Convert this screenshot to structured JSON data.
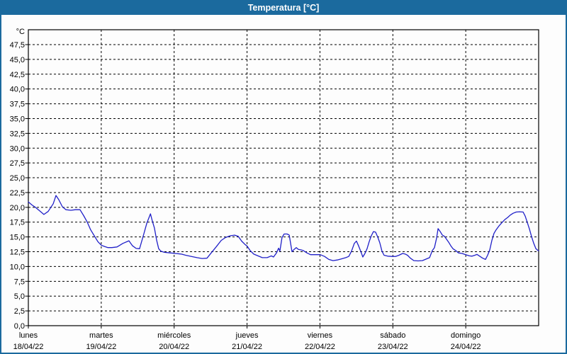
{
  "window": {
    "title": "Temperatura [°C]"
  },
  "colors": {
    "accent": "#1b6a9e",
    "title_text": "#ffffff",
    "line": "#2020c8",
    "grid": "#000000",
    "axis": "#000000",
    "plot_background": "#fdfdfd",
    "label_text": "#000000"
  },
  "chart_data": {
    "type": "line",
    "title": "Temperatura [°C]",
    "xlabel": "",
    "ylabel": "°C",
    "ylim": [
      0,
      50
    ],
    "ytick_step": 2.5,
    "ytick_labels": [
      "0,0",
      "2,5",
      "5,0",
      "7,5",
      "10,0",
      "12,5",
      "15,0",
      "17,5",
      "20,0",
      "22,5",
      "25,0",
      "27,5",
      "30,0",
      "32,5",
      "35,0",
      "37,5",
      "40,0",
      "42,5",
      "45,0",
      "47,5"
    ],
    "grid": "dashed",
    "legend_position": "none",
    "x_hours_total": 168,
    "x_days": [
      {
        "name": "lunes",
        "date": "18/04/22"
      },
      {
        "name": "martes",
        "date": "19/04/22"
      },
      {
        "name": "miércoles",
        "date": "20/04/22"
      },
      {
        "name": "jueves",
        "date": "21/04/22"
      },
      {
        "name": "viernes",
        "date": "22/04/22"
      },
      {
        "name": "sábado",
        "date": "23/04/22"
      },
      {
        "name": "domingo",
        "date": "24/04/22"
      }
    ],
    "series": [
      {
        "name": "Temperatura",
        "unit": "°C",
        "points": [
          [
            0,
            20.9
          ],
          [
            1.2,
            20.4
          ],
          [
            2.3,
            20.0
          ],
          [
            3.5,
            19.5
          ],
          [
            5.1,
            18.8
          ],
          [
            6.5,
            19.3
          ],
          [
            8.2,
            20.6
          ],
          [
            9.1,
            22.0
          ],
          [
            10,
            21.3
          ],
          [
            11.2,
            20.1
          ],
          [
            12.4,
            19.6
          ],
          [
            14,
            19.5
          ],
          [
            15.5,
            19.6
          ],
          [
            17,
            19.6
          ],
          [
            18.2,
            18.6
          ],
          [
            19.4,
            17.5
          ],
          [
            20.5,
            16.2
          ],
          [
            21.7,
            15.2
          ],
          [
            22.9,
            14.2
          ],
          [
            24,
            13.6
          ],
          [
            25,
            13.4
          ],
          [
            26.2,
            13.2
          ],
          [
            27.5,
            13.2
          ],
          [
            29.2,
            13.3
          ],
          [
            31.1,
            13.9
          ],
          [
            33.1,
            14.35
          ],
          [
            34.3,
            13.5
          ],
          [
            35.5,
            13.05
          ],
          [
            36.6,
            13.0
          ],
          [
            38,
            15.5
          ],
          [
            39,
            17.3
          ],
          [
            40.2,
            18.9
          ],
          [
            40.8,
            17.7
          ],
          [
            41.5,
            16.5
          ],
          [
            42.2,
            14.5
          ],
          [
            42.9,
            13.0
          ],
          [
            43.6,
            12.6
          ],
          [
            44.8,
            12.4
          ],
          [
            46.7,
            12.3
          ],
          [
            48.5,
            12.2
          ],
          [
            50.4,
            12.1
          ],
          [
            51.8,
            11.9
          ],
          [
            53.7,
            11.7
          ],
          [
            55.5,
            11.5
          ],
          [
            57.2,
            11.35
          ],
          [
            58.8,
            11.4
          ],
          [
            60.2,
            12.3
          ],
          [
            61.8,
            13.3
          ],
          [
            63.5,
            14.4
          ],
          [
            64.9,
            14.9
          ],
          [
            66.5,
            15.2
          ],
          [
            67.9,
            15.3
          ],
          [
            69.1,
            15.1
          ],
          [
            70.2,
            14.3
          ],
          [
            71.2,
            13.8
          ],
          [
            72.1,
            13.4
          ],
          [
            73,
            12.7
          ],
          [
            74.2,
            12.1
          ],
          [
            75.6,
            11.8
          ],
          [
            77,
            11.5
          ],
          [
            78.6,
            11.5
          ],
          [
            80,
            11.8
          ],
          [
            80.7,
            11.6
          ],
          [
            81.7,
            12.3
          ],
          [
            82.4,
            13.1
          ],
          [
            82.8,
            12.6
          ],
          [
            83.5,
            14.9
          ],
          [
            84.2,
            15.5
          ],
          [
            85.2,
            15.5
          ],
          [
            85.9,
            15.3
          ],
          [
            86.3,
            14.0
          ],
          [
            86.8,
            12.5
          ],
          [
            87.5,
            12.9
          ],
          [
            88.2,
            13.2
          ],
          [
            88.9,
            12.9
          ],
          [
            89.8,
            12.8
          ],
          [
            90.5,
            12.7
          ],
          [
            91.7,
            12.3
          ],
          [
            92.9,
            12.0
          ],
          [
            94.5,
            12.0
          ],
          [
            96.1,
            12.0
          ],
          [
            97.5,
            11.7
          ],
          [
            98.9,
            11.2
          ],
          [
            100.3,
            11.0
          ],
          [
            101.7,
            11.1
          ],
          [
            103.1,
            11.3
          ],
          [
            104.5,
            11.5
          ],
          [
            105.5,
            11.7
          ],
          [
            106.4,
            12.6
          ],
          [
            107.3,
            13.9
          ],
          [
            108,
            14.3
          ],
          [
            108.7,
            13.5
          ],
          [
            109.4,
            12.6
          ],
          [
            110.1,
            11.6
          ],
          [
            110.8,
            12.2
          ],
          [
            111.5,
            13.0
          ],
          [
            112.2,
            14.2
          ],
          [
            112.9,
            15.2
          ],
          [
            113.6,
            15.9
          ],
          [
            114.3,
            15.8
          ],
          [
            115,
            15.0
          ],
          [
            115.7,
            14.0
          ],
          [
            116.4,
            12.6
          ],
          [
            117.1,
            11.9
          ],
          [
            118.3,
            11.75
          ],
          [
            119.7,
            11.7
          ],
          [
            120.9,
            11.7
          ],
          [
            122,
            11.9
          ],
          [
            123.2,
            12.2
          ],
          [
            124.1,
            12.1
          ],
          [
            124.8,
            11.9
          ],
          [
            125.8,
            11.4
          ],
          [
            126.9,
            11.0
          ],
          [
            128.3,
            10.95
          ],
          [
            129.7,
            11.0
          ],
          [
            131.1,
            11.3
          ],
          [
            132.1,
            11.5
          ],
          [
            133,
            12.7
          ],
          [
            133.7,
            13.2
          ],
          [
            134.4,
            14.8
          ],
          [
            134.9,
            16.4
          ],
          [
            135.6,
            15.9
          ],
          [
            136.3,
            15.3
          ],
          [
            137,
            15.1
          ],
          [
            137.7,
            14.6
          ],
          [
            138.4,
            14.1
          ],
          [
            139.1,
            13.5
          ],
          [
            139.8,
            13.0
          ],
          [
            140.7,
            12.7
          ],
          [
            141.6,
            12.3
          ],
          [
            142.8,
            12.2
          ],
          [
            144,
            12.0
          ],
          [
            145.2,
            11.8
          ],
          [
            146.1,
            11.75
          ],
          [
            147,
            11.9
          ],
          [
            147.7,
            12.05
          ],
          [
            148.7,
            11.7
          ],
          [
            149.6,
            11.4
          ],
          [
            150.5,
            11.2
          ],
          [
            151.2,
            11.9
          ],
          [
            151.9,
            12.8
          ],
          [
            152.6,
            14.4
          ],
          [
            153.3,
            15.6
          ],
          [
            154,
            16.2
          ],
          [
            155,
            16.9
          ],
          [
            155.9,
            17.4
          ],
          [
            156.8,
            17.9
          ],
          [
            157.8,
            18.3
          ],
          [
            158.7,
            18.7
          ],
          [
            159.6,
            19.0
          ],
          [
            160.6,
            19.2
          ],
          [
            161.7,
            19.25
          ],
          [
            162.9,
            19.2
          ],
          [
            163.6,
            18.5
          ],
          [
            164.3,
            17.4
          ],
          [
            165,
            16.3
          ],
          [
            165.7,
            15.0
          ],
          [
            166.4,
            13.9
          ],
          [
            167.1,
            13.0
          ],
          [
            167.8,
            12.7
          ],
          [
            168,
            12.65
          ]
        ]
      }
    ]
  }
}
